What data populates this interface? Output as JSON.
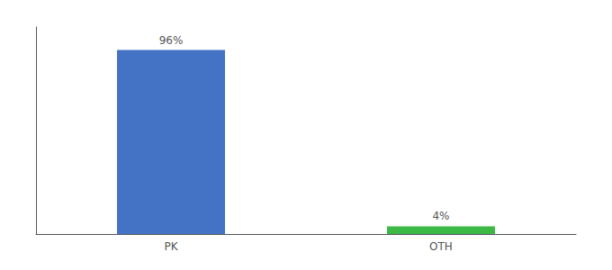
{
  "chart_data": {
    "type": "bar",
    "categories": [
      "PK",
      "OTH"
    ],
    "values": [
      96,
      4
    ],
    "value_labels": [
      "96%",
      "4%"
    ],
    "colors": [
      "#4472c4",
      "#3cb844"
    ],
    "ylim": [
      0,
      108
    ],
    "tick_labels": "x",
    "data_labels": true,
    "grid": false
  }
}
